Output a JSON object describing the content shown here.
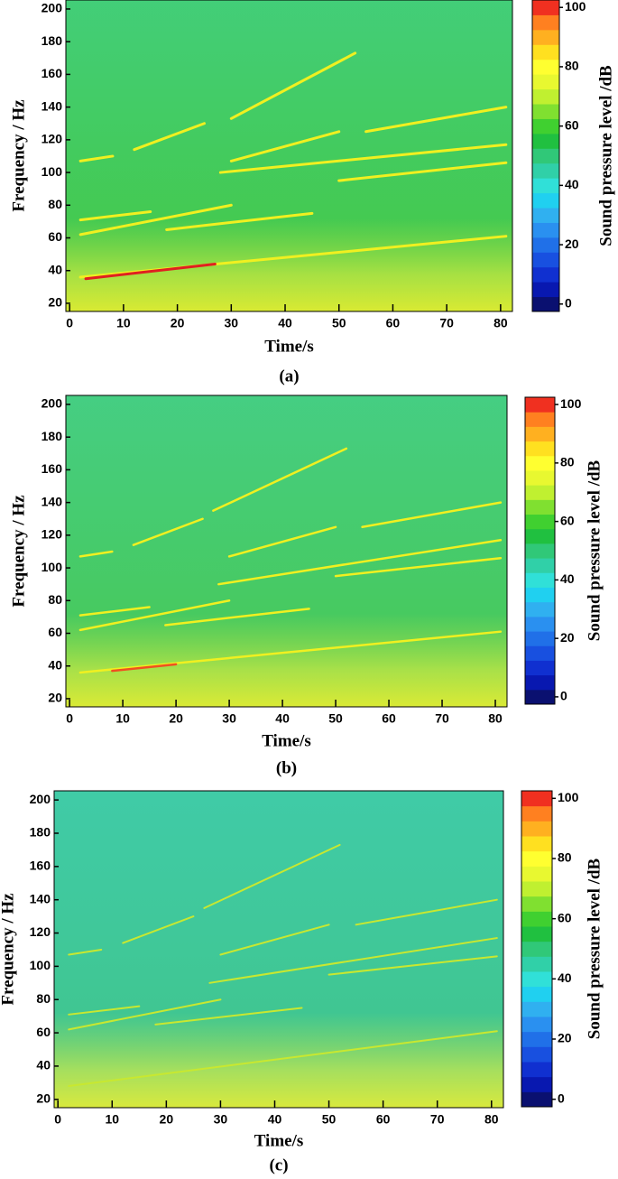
{
  "chart_data": [
    {
      "type": "spectrogram",
      "caption": "(a)",
      "xlabel": "Time/s",
      "ylabel": "Frequency / Hz",
      "colorbar_label": "Sound pressure level /dB",
      "xlim": [
        -0.7,
        82.2
      ],
      "ylim": [
        15,
        205.5
      ],
      "xticks": [
        0,
        10,
        20,
        30,
        40,
        50,
        60,
        70,
        80
      ],
      "yticks": [
        20,
        40,
        60,
        80,
        100,
        120,
        140,
        160,
        180,
        200
      ],
      "clim": [
        -2.5,
        102.5
      ],
      "cticks": [
        0,
        20,
        40,
        60,
        80,
        100
      ],
      "colorbar_colors": [
        "#0a1070",
        "#0818b0",
        "#1030d0",
        "#1850e0",
        "#2070e8",
        "#2a90f0",
        "#30b0f0",
        "#20d0f0",
        "#30e0d8",
        "#30d0a8",
        "#30c878",
        "#20c040",
        "#40d030",
        "#80e030",
        "#c0f030",
        "#e8f830",
        "#ffff30",
        "#ffe020",
        "#ffb020",
        "#ff8020",
        "#f03020"
      ],
      "background_color": "#44c840",
      "series": [
        {
          "color": "#f0f020",
          "x": [
            2,
            81
          ],
          "values": [
            36,
            61
          ]
        },
        {
          "color": "#e02020",
          "x": [
            3,
            27
          ],
          "values": [
            35,
            44
          ]
        },
        {
          "color": "#f0f020",
          "x": [
            2,
            30
          ],
          "values": [
            62,
            80
          ]
        },
        {
          "color": "#f0f020",
          "x": [
            2,
            15
          ],
          "values": [
            71,
            76
          ]
        },
        {
          "color": "#f0f020",
          "x": [
            18,
            45
          ],
          "values": [
            65,
            75
          ]
        },
        {
          "color": "#f0f020",
          "x": [
            28,
            81
          ],
          "values": [
            100,
            117
          ]
        },
        {
          "color": "#f0f020",
          "x": [
            50,
            81
          ],
          "values": [
            95,
            106
          ]
        },
        {
          "color": "#f0f020",
          "x": [
            30,
            50
          ],
          "values": [
            107,
            125
          ]
        },
        {
          "color": "#f0f020",
          "x": [
            12,
            25
          ],
          "values": [
            114,
            130
          ]
        },
        {
          "color": "#f0f020",
          "x": [
            30,
            53
          ],
          "values": [
            133,
            173
          ]
        },
        {
          "color": "#f0f020",
          "x": [
            55,
            81
          ],
          "values": [
            125,
            140
          ]
        },
        {
          "color": "#f0f020",
          "x": [
            2,
            8
          ],
          "values": [
            107,
            110
          ]
        }
      ]
    },
    {
      "type": "spectrogram",
      "caption": "(b)",
      "xlabel": "Time/s",
      "ylabel": "Frequency / Hz",
      "colorbar_label": "Sound pressure level /dB",
      "xlim": [
        -0.7,
        82.2
      ],
      "ylim": [
        15,
        205.5
      ],
      "xticks": [
        0,
        10,
        20,
        30,
        40,
        50,
        60,
        70,
        80
      ],
      "yticks": [
        20,
        40,
        60,
        80,
        100,
        120,
        140,
        160,
        180,
        200
      ],
      "clim": [
        -2.5,
        102.5
      ],
      "cticks": [
        0,
        20,
        40,
        60,
        80,
        100
      ],
      "colorbar_colors": [
        "#0a1070",
        "#0818b0",
        "#1030d0",
        "#1850e0",
        "#2070e8",
        "#2a90f0",
        "#30b0f0",
        "#20d0f0",
        "#30e0d8",
        "#30d0a8",
        "#30c878",
        "#20c040",
        "#40d030",
        "#80e030",
        "#c0f030",
        "#e8f830",
        "#ffff30",
        "#ffe020",
        "#ffb020",
        "#ff8020",
        "#f03020"
      ],
      "background_color": "#48c850",
      "series": [
        {
          "color": "#f0f020",
          "x": [
            2,
            81
          ],
          "values": [
            36,
            61
          ]
        },
        {
          "color": "#f05020",
          "x": [
            8,
            20
          ],
          "values": [
            37,
            41
          ]
        },
        {
          "color": "#f0f020",
          "x": [
            2,
            30
          ],
          "values": [
            62,
            80
          ]
        },
        {
          "color": "#f0f020",
          "x": [
            2,
            15
          ],
          "values": [
            71,
            76
          ]
        },
        {
          "color": "#f0f020",
          "x": [
            18,
            45
          ],
          "values": [
            65,
            75
          ]
        },
        {
          "color": "#f0f020",
          "x": [
            28,
            81
          ],
          "values": [
            90,
            117
          ]
        },
        {
          "color": "#f0f020",
          "x": [
            50,
            81
          ],
          "values": [
            95,
            106
          ]
        },
        {
          "color": "#f0f020",
          "x": [
            30,
            50
          ],
          "values": [
            107,
            125
          ]
        },
        {
          "color": "#f0f020",
          "x": [
            12,
            25
          ],
          "values": [
            114,
            130
          ]
        },
        {
          "color": "#f0f020",
          "x": [
            27,
            52
          ],
          "values": [
            135,
            173
          ]
        },
        {
          "color": "#f0f020",
          "x": [
            55,
            81
          ],
          "values": [
            125,
            140
          ]
        },
        {
          "color": "#f0f020",
          "x": [
            2,
            8
          ],
          "values": [
            107,
            110
          ]
        }
      ]
    },
    {
      "type": "spectrogram",
      "caption": "(c)",
      "xlabel": "Time/s",
      "ylabel": "Frequency / Hz",
      "colorbar_label": "Sound pressure level /dB",
      "xlim": [
        -0.7,
        82.2
      ],
      "ylim": [
        15,
        205.5
      ],
      "xticks": [
        0,
        10,
        20,
        30,
        40,
        50,
        60,
        70,
        80
      ],
      "yticks": [
        20,
        40,
        60,
        80,
        100,
        120,
        140,
        160,
        180,
        200
      ],
      "clim": [
        -2.5,
        102.5
      ],
      "cticks": [
        0,
        20,
        40,
        60,
        80,
        100
      ],
      "colorbar_colors": [
        "#0a1070",
        "#0818b0",
        "#1030d0",
        "#1850e0",
        "#2070e8",
        "#2a90f0",
        "#30b0f0",
        "#20d0f0",
        "#30e0d8",
        "#30d0a8",
        "#30c878",
        "#20c040",
        "#40d030",
        "#80e030",
        "#c0f030",
        "#e8f830",
        "#ffff30",
        "#ffe020",
        "#ffb020",
        "#ff8020",
        "#f03020"
      ],
      "background_color": "#40c488",
      "series": [
        {
          "color": "#c8e830",
          "x": [
            2,
            81
          ],
          "values": [
            28,
            61
          ]
        },
        {
          "color": "#c8e830",
          "x": [
            2,
            30
          ],
          "values": [
            62,
            80
          ]
        },
        {
          "color": "#c8e830",
          "x": [
            2,
            15
          ],
          "values": [
            71,
            76
          ]
        },
        {
          "color": "#c8e830",
          "x": [
            18,
            45
          ],
          "values": [
            65,
            75
          ]
        },
        {
          "color": "#c8e830",
          "x": [
            28,
            81
          ],
          "values": [
            90,
            117
          ]
        },
        {
          "color": "#c8e830",
          "x": [
            50,
            81
          ],
          "values": [
            95,
            106
          ]
        },
        {
          "color": "#c8e830",
          "x": [
            30,
            50
          ],
          "values": [
            107,
            125
          ]
        },
        {
          "color": "#c8e830",
          "x": [
            12,
            25
          ],
          "values": [
            114,
            130
          ]
        },
        {
          "color": "#c8e830",
          "x": [
            27,
            52
          ],
          "values": [
            135,
            173
          ]
        },
        {
          "color": "#c8e830",
          "x": [
            55,
            81
          ],
          "values": [
            125,
            140
          ]
        },
        {
          "color": "#c8e830",
          "x": [
            2,
            8
          ],
          "values": [
            107,
            110
          ]
        }
      ]
    }
  ]
}
